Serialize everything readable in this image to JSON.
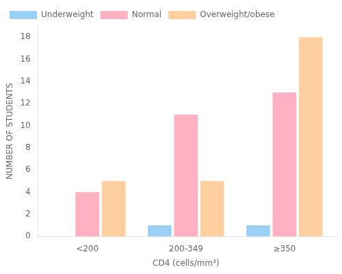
{
  "chart_data": {
    "type": "bar",
    "categories": [
      "<200",
      "200-349",
      "≥350"
    ],
    "series": [
      {
        "name": "Underweight",
        "values": [
          0,
          1,
          1
        ]
      },
      {
        "name": "Normal",
        "values": [
          4,
          11,
          13
        ]
      },
      {
        "name": "Overweight/obese",
        "values": [
          5,
          5,
          18
        ]
      }
    ],
    "xlabel": "CD4 (cells/mm³)",
    "ylabel": "NUMBER OF STUDENTS",
    "ylim": [
      0,
      19
    ],
    "yticks": [
      0,
      2,
      4,
      6,
      8,
      10,
      12,
      14,
      16,
      18
    ],
    "grid": false,
    "legend": "upper left"
  }
}
